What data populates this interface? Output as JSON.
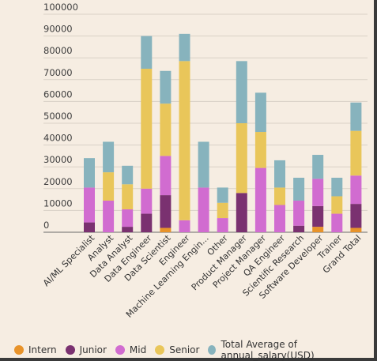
{
  "chart_data": {
    "type": "bar",
    "stacked": true,
    "categories": [
      "AI/ML Specialist",
      "Analyst",
      "Data Analyst",
      "Data Engineer",
      "Data Scientist",
      "Engineer",
      "Machine Learning Engin...",
      "Other",
      "Product Manager",
      "Project Manager",
      "QA Engineer",
      "Scientific Research",
      "Software Developer",
      "Trainer",
      "Grand Total"
    ],
    "series": [
      {
        "name": "Intern",
        "color": "#e8932a",
        "values": [
          0,
          0,
          0,
          0,
          2000,
          0,
          0,
          0,
          0,
          0,
          0,
          0,
          2500,
          0,
          2000
        ]
      },
      {
        "name": "Junior",
        "color": "#7a3170",
        "values": [
          4500,
          0,
          2500,
          8500,
          15000,
          0,
          0,
          0,
          18000,
          0,
          0,
          3000,
          9500,
          0,
          11000
        ]
      },
      {
        "name": "Mid",
        "color": "#d16cd0",
        "values": [
          16000,
          14500,
          8000,
          11500,
          18000,
          5500,
          20500,
          6500,
          0,
          29500,
          12500,
          11500,
          12500,
          8500,
          13000
        ]
      },
      {
        "name": "Senior",
        "color": "#e9c65a",
        "values": [
          0,
          13000,
          11500,
          55000,
          24000,
          73000,
          0,
          7000,
          32000,
          16500,
          8000,
          0,
          0,
          8000,
          20500
        ]
      },
      {
        "name": "Total Average of annual_salary(USD)",
        "color": "#87b3bd",
        "values": [
          13500,
          14000,
          8500,
          15000,
          15000,
          12500,
          21000,
          7000,
          28500,
          18000,
          12500,
          10500,
          11000,
          8500,
          13000
        ]
      }
    ],
    "yticks": [
      0,
      10000,
      20000,
      30000,
      40000,
      50000,
      60000,
      70000,
      80000,
      90000,
      100000
    ],
    "ylim": [
      0,
      100000
    ],
    "grid": true,
    "legend_position": "bottom",
    "title": "",
    "xlabel": "",
    "ylabel": ""
  }
}
